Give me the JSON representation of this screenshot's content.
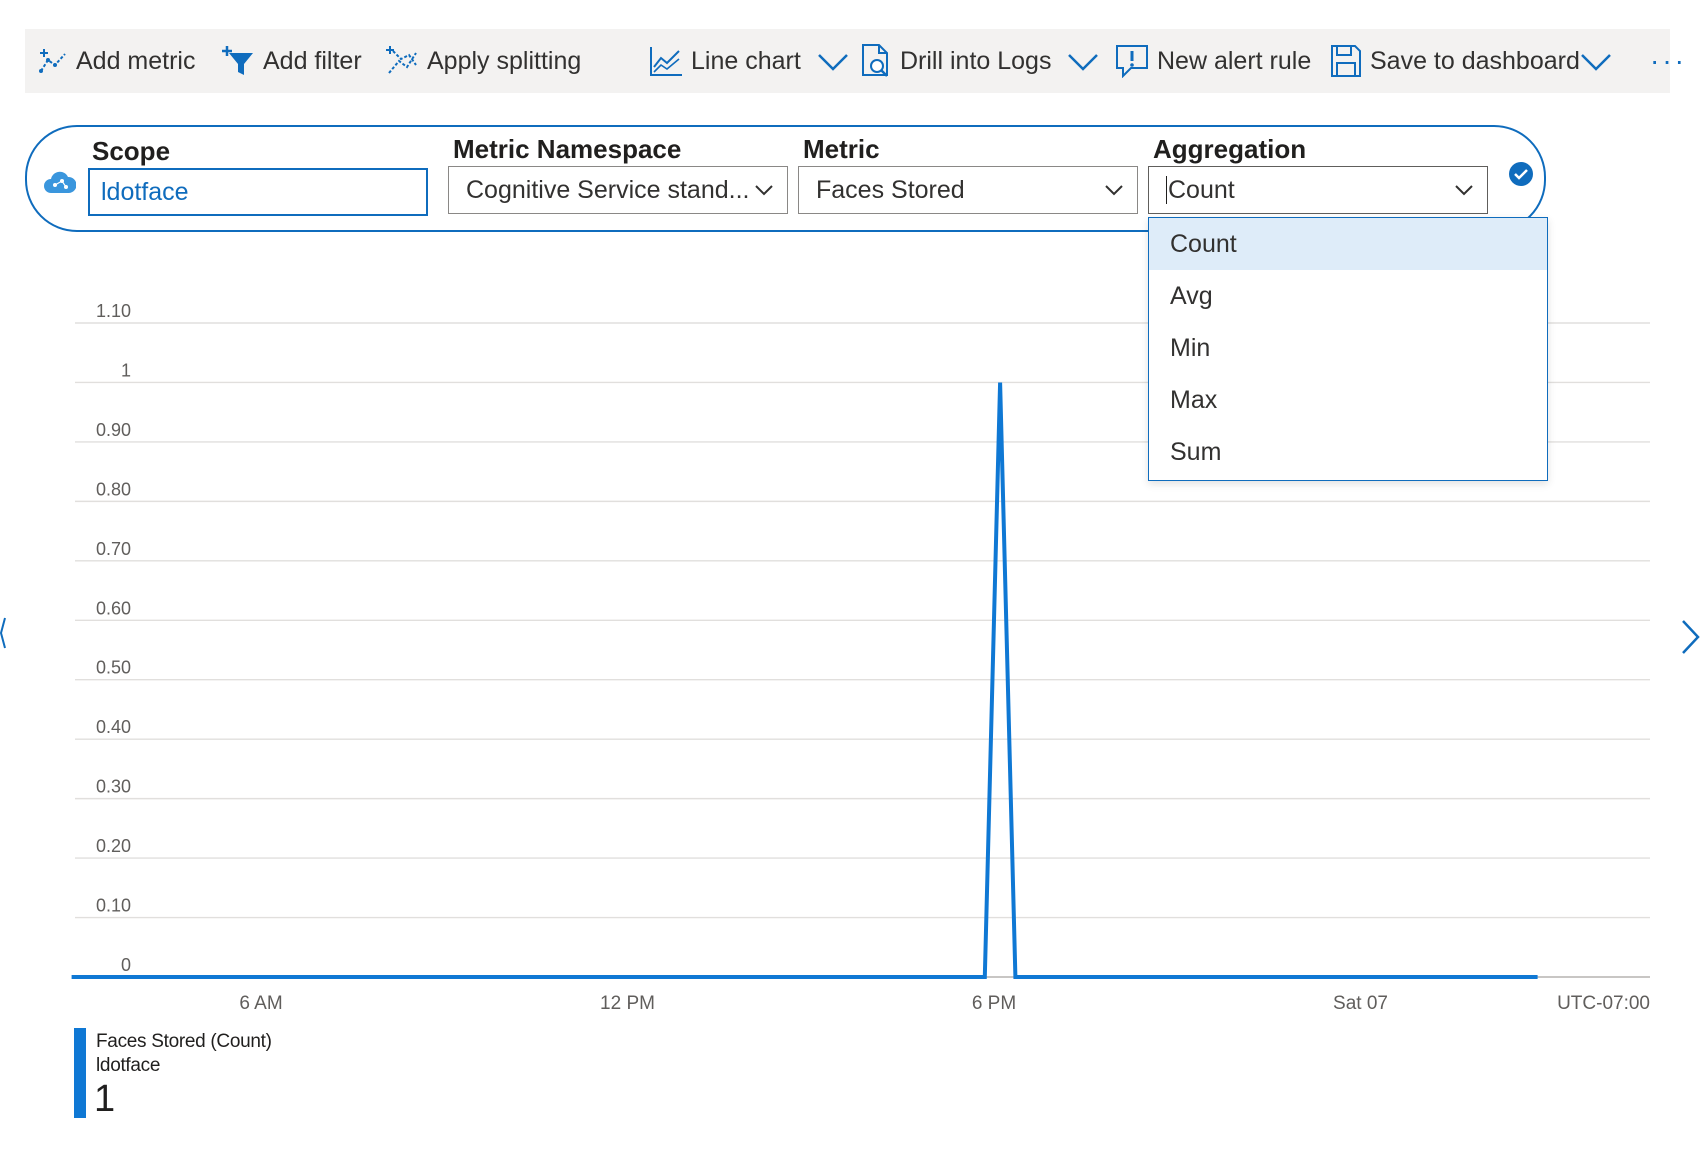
{
  "toolbar": {
    "add_metric": "Add metric",
    "add_filter": "Add filter",
    "apply_splitting": "Apply splitting",
    "line_chart": "Line chart",
    "drill_into_logs": "Drill into Logs",
    "new_alert_rule": "New alert rule",
    "save_to_dashboard": "Save to dashboard",
    "more": "···"
  },
  "selector": {
    "scope_label": "Scope",
    "scope_value": "ldotface",
    "namespace_label": "Metric Namespace",
    "namespace_value": "Cognitive Service stand...",
    "metric_label": "Metric",
    "metric_value": "Faces Stored",
    "aggregation_label": "Aggregation",
    "aggregation_value": "Count"
  },
  "aggregation_options": [
    "Count",
    "Avg",
    "Min",
    "Max",
    "Sum"
  ],
  "colors": {
    "accent": "#0f6cbd",
    "series": "#0f78d4",
    "selected_bg": "#deecf9",
    "toolbar_bg": "#f3f2f1"
  },
  "chart_data": {
    "type": "line",
    "y_ticks": [
      "0",
      "0.10",
      "0.20",
      "0.30",
      "0.40",
      "0.50",
      "0.60",
      "0.70",
      "0.80",
      "0.90",
      "1",
      "1.10"
    ],
    "x_ticks": [
      "6 AM",
      "12 PM",
      "6 PM",
      "Sat 07"
    ],
    "timezone": "UTC-07:00",
    "ylim": [
      0,
      1.1
    ],
    "grid": true,
    "series": [
      {
        "name": "Faces Stored (Count)",
        "x_hours": [
          2.9,
          17.85,
          18.1,
          18.35,
          26.9
        ],
        "values": [
          0,
          0,
          1,
          0,
          0
        ]
      }
    ]
  },
  "legend": {
    "title": "Faces Stored (Count)",
    "subtitle": "ldotface",
    "value": "1"
  }
}
